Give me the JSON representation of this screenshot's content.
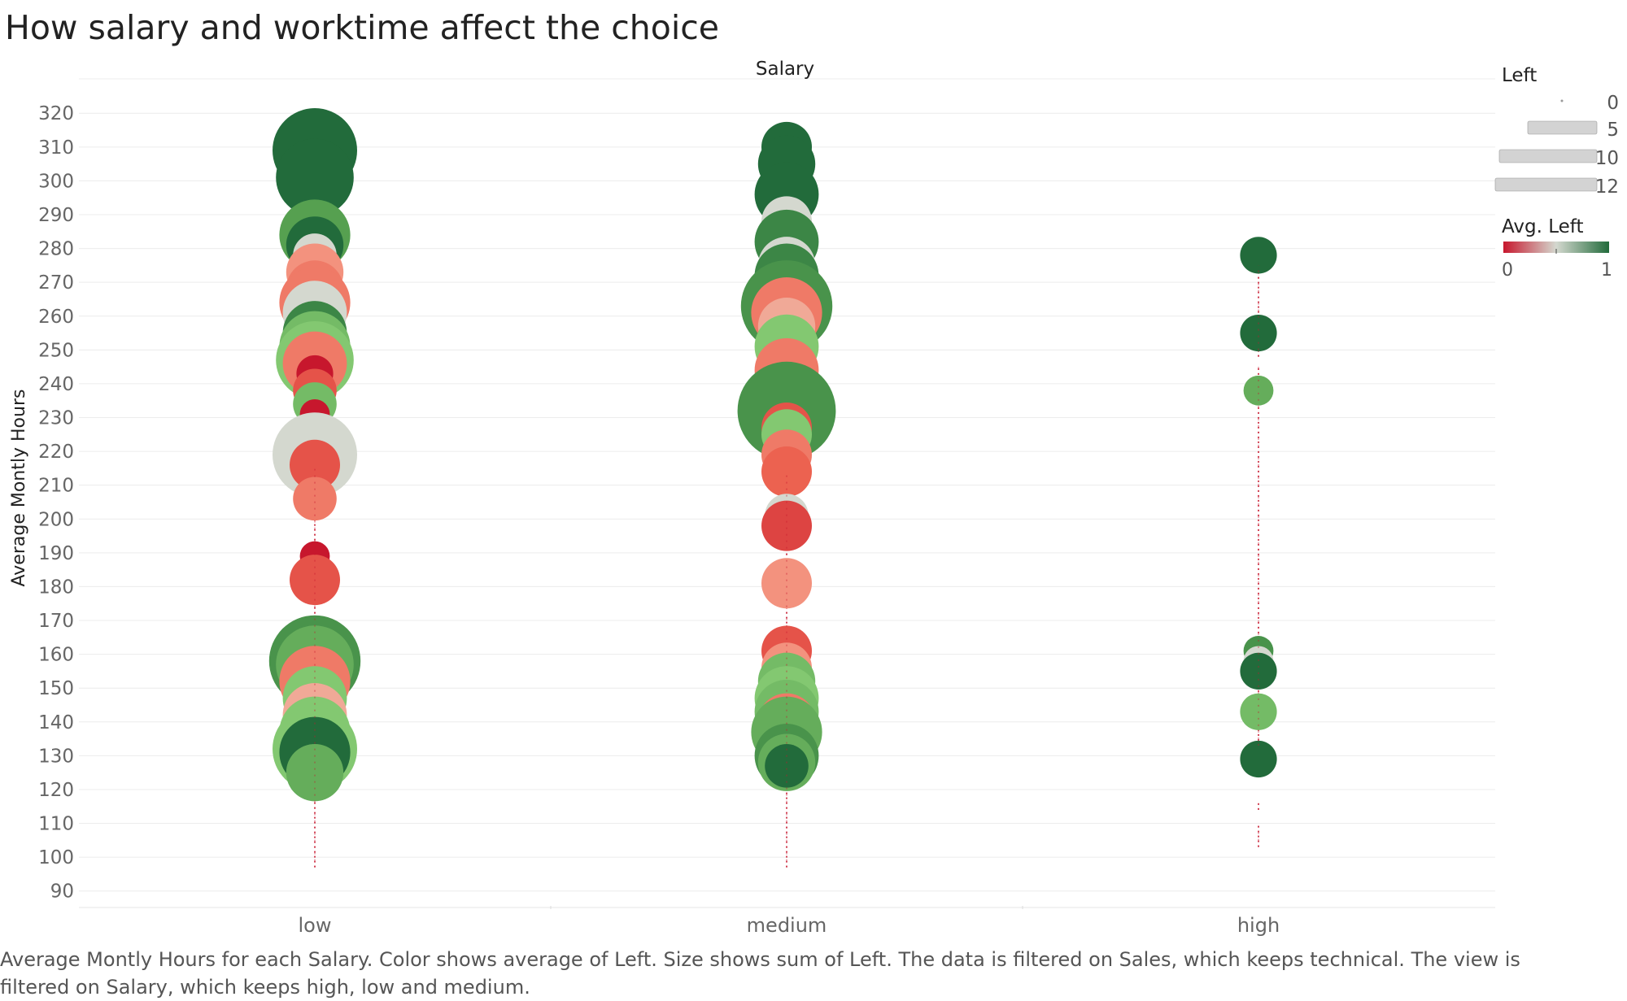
{
  "title": "How salary and worktime affect the choice",
  "caption": "Average Montly Hours for each Salary.  Color shows average of Left.  Size shows sum of Left. The data is filtered on Sales, which keeps technical. The view is filtered on Salary, which keeps high, low and medium.",
  "colors": {
    "scale_low": "#c7172d",
    "scale_mid": "#d4d8cf",
    "scale_high": "#226b3b",
    "gridline": "#ececec",
    "axis_text": "#666666",
    "stem": "#c7172d"
  },
  "legend": {
    "size": {
      "title": "Left",
      "entries": [
        "0",
        "5",
        "10",
        "12"
      ]
    },
    "color": {
      "title": "Avg. Left",
      "min_label": "0",
      "max_label": "1"
    }
  },
  "chart_data": {
    "type": "scatter",
    "title": "How salary and worktime affect the choice",
    "column_header": "Salary",
    "xlabel": "",
    "ylabel": "Average Montly Hours",
    "categories": [
      "low",
      "medium",
      "high"
    ],
    "ylim": [
      90,
      320
    ],
    "yticks": [
      90,
      100,
      110,
      120,
      130,
      140,
      150,
      160,
      170,
      180,
      190,
      200,
      210,
      220,
      230,
      240,
      250,
      260,
      270,
      280,
      290,
      300,
      310,
      320
    ],
    "grid": true,
    "size_measure": "Sum of Left",
    "color_measure": "Avg. Left",
    "points": [
      {
        "cat": "low",
        "y": 309,
        "sum_left": 10,
        "avg_left": 1.0
      },
      {
        "cat": "low",
        "y": 301,
        "sum_left": 9,
        "avg_left": 1.0
      },
      {
        "cat": "low",
        "y": 287,
        "sum_left": 5,
        "avg_left": 0.85
      },
      {
        "cat": "low",
        "y": 284,
        "sum_left": 8,
        "avg_left": 0.8
      },
      {
        "cat": "low",
        "y": 281,
        "sum_left": 6,
        "avg_left": 1.0
      },
      {
        "cat": "low",
        "y": 278,
        "sum_left": 4,
        "avg_left": 0.5
      },
      {
        "cat": "low",
        "y": 273,
        "sum_left": 6,
        "avg_left": 0.35
      },
      {
        "cat": "low",
        "y": 268,
        "sum_left": 6,
        "avg_left": 0.3
      },
      {
        "cat": "low",
        "y": 264,
        "sum_left": 8,
        "avg_left": 0.3
      },
      {
        "cat": "low",
        "y": 261,
        "sum_left": 7,
        "avg_left": 0.5
      },
      {
        "cat": "low",
        "y": 255,
        "sum_left": 7,
        "avg_left": 0.9
      },
      {
        "cat": "low",
        "y": 251,
        "sum_left": 8,
        "avg_left": 0.7
      },
      {
        "cat": "low",
        "y": 247,
        "sum_left": 9,
        "avg_left": 0.65
      },
      {
        "cat": "low",
        "y": 246,
        "sum_left": 7,
        "avg_left": 0.3
      },
      {
        "cat": "low",
        "y": 243,
        "sum_left": 3,
        "avg_left": 0.0
      },
      {
        "cat": "low",
        "y": 238,
        "sum_left": 4,
        "avg_left": 0.2
      },
      {
        "cat": "low",
        "y": 234,
        "sum_left": 4,
        "avg_left": 0.7
      },
      {
        "cat": "low",
        "y": 231,
        "sum_left": 2,
        "avg_left": 0.0
      },
      {
        "cat": "low",
        "y": 219,
        "sum_left": 10,
        "avg_left": 0.5
      },
      {
        "cat": "low",
        "y": 216,
        "sum_left": 5,
        "avg_left": 0.2
      },
      {
        "cat": "low",
        "y": 206,
        "sum_left": 4,
        "avg_left": 0.3
      },
      {
        "cat": "low",
        "y": 189,
        "sum_left": 2,
        "avg_left": 0.0
      },
      {
        "cat": "low",
        "y": 182,
        "sum_left": 5,
        "avg_left": 0.2
      },
      {
        "cat": "low",
        "y": 158,
        "sum_left": 11,
        "avg_left": 0.85
      },
      {
        "cat": "low",
        "y": 157,
        "sum_left": 9,
        "avg_left": 0.75
      },
      {
        "cat": "low",
        "y": 152,
        "sum_left": 8,
        "avg_left": 0.3
      },
      {
        "cat": "low",
        "y": 147,
        "sum_left": 7,
        "avg_left": 0.65
      },
      {
        "cat": "low",
        "y": 142,
        "sum_left": 7,
        "avg_left": 0.4
      },
      {
        "cat": "low",
        "y": 137,
        "sum_left": 8,
        "avg_left": 0.65
      },
      {
        "cat": "low",
        "y": 132,
        "sum_left": 10,
        "avg_left": 0.65
      },
      {
        "cat": "low",
        "y": 131,
        "sum_left": 8,
        "avg_left": 1.0
      },
      {
        "cat": "low",
        "y": 125,
        "sum_left": 6,
        "avg_left": 0.75
      },
      {
        "cat": "medium",
        "y": 310,
        "sum_left": 5,
        "avg_left": 1.0
      },
      {
        "cat": "medium",
        "y": 305,
        "sum_left": 6,
        "avg_left": 1.0
      },
      {
        "cat": "medium",
        "y": 296,
        "sum_left": 7,
        "avg_left": 1.0
      },
      {
        "cat": "medium",
        "y": 288,
        "sum_left": 5,
        "avg_left": 0.5
      },
      {
        "cat": "medium",
        "y": 282,
        "sum_left": 7,
        "avg_left": 0.9
      },
      {
        "cat": "medium",
        "y": 275,
        "sum_left": 6,
        "avg_left": 0.5
      },
      {
        "cat": "medium",
        "y": 272,
        "sum_left": 7,
        "avg_left": 0.9
      },
      {
        "cat": "medium",
        "y": 263,
        "sum_left": 11,
        "avg_left": 0.85
      },
      {
        "cat": "medium",
        "y": 261,
        "sum_left": 8,
        "avg_left": 0.3
      },
      {
        "cat": "medium",
        "y": 257,
        "sum_left": 6,
        "avg_left": 0.4
      },
      {
        "cat": "medium",
        "y": 251,
        "sum_left": 7,
        "avg_left": 0.65
      },
      {
        "cat": "medium",
        "y": 244,
        "sum_left": 7,
        "avg_left": 0.3
      },
      {
        "cat": "medium",
        "y": 232,
        "sum_left": 12,
        "avg_left": 0.85
      },
      {
        "cat": "medium",
        "y": 227,
        "sum_left": 5,
        "avg_left": 0.2
      },
      {
        "cat": "medium",
        "y": 225,
        "sum_left": 5,
        "avg_left": 0.65
      },
      {
        "cat": "medium",
        "y": 219,
        "sum_left": 5,
        "avg_left": 0.3
      },
      {
        "cat": "medium",
        "y": 214,
        "sum_left": 5,
        "avg_left": 0.25
      },
      {
        "cat": "medium",
        "y": 201,
        "sum_left": 4,
        "avg_left": 0.5
      },
      {
        "cat": "medium",
        "y": 198,
        "sum_left": 5,
        "avg_left": 0.15
      },
      {
        "cat": "medium",
        "y": 181,
        "sum_left": 5,
        "avg_left": 0.35
      },
      {
        "cat": "medium",
        "y": 161,
        "sum_left": 5,
        "avg_left": 0.2
      },
      {
        "cat": "medium",
        "y": 156,
        "sum_left": 5,
        "avg_left": 0.35
      },
      {
        "cat": "medium",
        "y": 152,
        "sum_left": 6,
        "avg_left": 0.7
      },
      {
        "cat": "medium",
        "y": 147,
        "sum_left": 7,
        "avg_left": 0.65
      },
      {
        "cat": "medium",
        "y": 143,
        "sum_left": 7,
        "avg_left": 0.7
      },
      {
        "cat": "medium",
        "y": 140,
        "sum_left": 6,
        "avg_left": 0.3
      },
      {
        "cat": "medium",
        "y": 137,
        "sum_left": 8,
        "avg_left": 0.75
      },
      {
        "cat": "medium",
        "y": 130,
        "sum_left": 7,
        "avg_left": 0.85
      },
      {
        "cat": "medium",
        "y": 128,
        "sum_left": 6,
        "avg_left": 0.75
      },
      {
        "cat": "medium",
        "y": 127,
        "sum_left": 4,
        "avg_left": 1.0
      },
      {
        "cat": "high",
        "y": 278,
        "sum_left": 3,
        "avg_left": 1.0
      },
      {
        "cat": "high",
        "y": 255,
        "sum_left": 3,
        "avg_left": 1.0
      },
      {
        "cat": "high",
        "y": 238,
        "sum_left": 2,
        "avg_left": 0.75
      },
      {
        "cat": "high",
        "y": 161,
        "sum_left": 2,
        "avg_left": 0.85
      },
      {
        "cat": "high",
        "y": 158,
        "sum_left": 2,
        "avg_left": 0.5
      },
      {
        "cat": "high",
        "y": 155,
        "sum_left": 3,
        "avg_left": 1.0
      },
      {
        "cat": "high",
        "y": 143,
        "sum_left": 3,
        "avg_left": 0.7
      },
      {
        "cat": "high",
        "y": 129,
        "sum_left": 3,
        "avg_left": 1.0
      }
    ],
    "stems": [
      {
        "cat": "low",
        "y_from": 97,
        "y_to": 215
      },
      {
        "cat": "medium",
        "y_from": 97,
        "y_to": 213
      },
      {
        "cat": "high",
        "y_from": 103,
        "y_to": 110
      },
      {
        "cat": "high",
        "y_from": 114,
        "y_to": 116
      },
      {
        "cat": "high",
        "y_from": 133,
        "y_to": 245
      },
      {
        "cat": "high",
        "y_from": 248,
        "y_to": 275
      }
    ]
  }
}
